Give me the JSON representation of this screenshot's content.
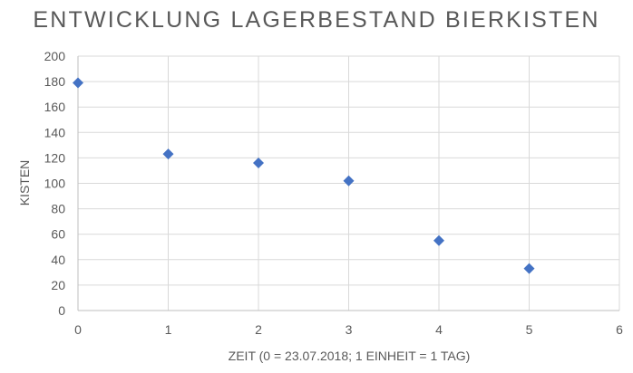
{
  "chart_data": {
    "type": "scatter",
    "title": "ENTWICKLUNG LAGERBESTAND BIERKISTEN",
    "xlabel": "ZEIT (0 = 23.07.2018; 1 EINHEIT = 1 TAG)",
    "ylabel": "KISTEN",
    "xlim": [
      0,
      6
    ],
    "ylim": [
      0,
      200
    ],
    "x_ticks": [
      "0",
      "1",
      "2",
      "3",
      "4",
      "5",
      "6"
    ],
    "y_ticks": [
      "0",
      "20",
      "40",
      "60",
      "80",
      "100",
      "120",
      "140",
      "160",
      "180",
      "200"
    ],
    "grid": true,
    "legend": "none",
    "marker": "diamond",
    "series_color": "#4472c4",
    "series": [
      {
        "x": [
          0,
          1,
          2,
          3,
          4,
          5
        ],
        "y": [
          179,
          123,
          116,
          102,
          55,
          33
        ]
      }
    ]
  }
}
